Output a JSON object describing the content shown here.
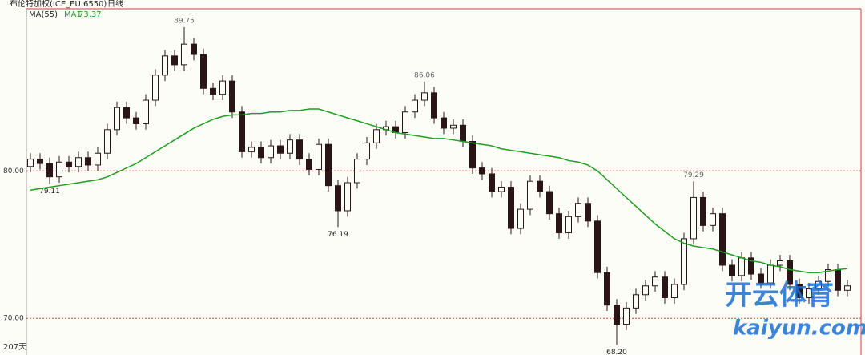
{
  "chart_data": {
    "type": "candlestick",
    "title": "布伦特加权(ICE_EU 6550)",
    "period": "日线",
    "indicator": "MA(55)",
    "footer": "207天",
    "ylim": [
      68,
      91
    ],
    "yticks": [
      {
        "value": 70,
        "label": "70.00"
      },
      {
        "value": 80,
        "label": "80.00"
      }
    ],
    "grid": true,
    "up_color": "#fdfdf7",
    "down_color": "#2a1616",
    "candles": {
      "open": [
        80.3,
        80.8,
        80.5,
        79.6,
        80.6,
        80.3,
        80.9,
        80.4,
        81.2,
        82.8,
        84.3,
        83.6,
        83.2,
        84.8,
        86.5,
        87.8,
        87.2,
        88.6,
        87.9,
        85.6,
        85.2,
        86.1,
        84.0,
        81.3,
        81.6,
        80.9,
        81.7,
        81.2,
        82.1,
        80.8,
        80.1,
        81.8,
        79.0,
        77.3,
        79.2,
        80.8,
        81.9,
        82.8,
        83.0,
        82.6,
        84.0,
        84.8,
        85.3,
        83.6,
        82.9,
        83.1,
        82.0,
        80.2,
        79.8,
        78.6,
        78.9,
        76.1,
        77.4,
        79.3,
        78.6,
        77.1,
        75.8,
        76.9,
        77.8,
        76.6,
        73.1,
        70.9,
        69.6,
        70.7,
        71.6,
        72.2,
        72.8,
        71.4,
        72.3,
        75.4,
        78.2,
        76.3,
        77.1,
        73.6,
        72.9,
        74.1,
        73.0,
        72.4,
        73.6,
        73.9,
        72.3,
        71.4,
        72.0,
        72.5,
        73.3,
        71.9
      ],
      "high": [
        81.2,
        81.2,
        80.9,
        81.0,
        81.0,
        81.3,
        81.3,
        81.6,
        83.2,
        84.7,
        84.7,
        84.0,
        85.2,
        86.9,
        88.2,
        88.2,
        89.75,
        89.0,
        88.3,
        86.0,
        86.5,
        86.5,
        84.4,
        82.0,
        82.0,
        82.1,
        82.1,
        82.5,
        82.5,
        81.2,
        82.2,
        82.2,
        79.4,
        79.6,
        81.2,
        82.3,
        83.2,
        83.4,
        83.4,
        84.4,
        85.2,
        86.06,
        85.7,
        84.0,
        83.5,
        83.5,
        82.4,
        80.6,
        80.2,
        79.3,
        79.3,
        77.8,
        79.7,
        79.7,
        79.0,
        77.5,
        77.3,
        78.2,
        78.2,
        77.0,
        73.5,
        71.3,
        71.1,
        72.0,
        72.6,
        73.2,
        73.2,
        72.7,
        75.8,
        79.29,
        78.6,
        77.5,
        77.5,
        74.0,
        74.5,
        74.5,
        73.4,
        74.0,
        74.3,
        74.3,
        72.7,
        72.4,
        72.9,
        73.7,
        73.7,
        72.6
      ],
      "low": [
        79.9,
        80.1,
        79.11,
        79.2,
        79.9,
        79.9,
        80.0,
        80.0,
        80.8,
        82.4,
        83.2,
        82.8,
        82.8,
        84.4,
        86.1,
        86.8,
        86.8,
        87.5,
        85.2,
        84.8,
        84.8,
        83.6,
        80.9,
        80.9,
        80.5,
        80.5,
        80.8,
        80.8,
        80.4,
        79.7,
        79.7,
        78.6,
        76.19,
        76.9,
        78.8,
        80.4,
        81.5,
        82.4,
        82.2,
        82.2,
        83.6,
        84.4,
        83.2,
        82.5,
        82.5,
        81.6,
        79.8,
        79.4,
        78.2,
        78.2,
        75.7,
        75.7,
        77.0,
        78.2,
        76.7,
        75.4,
        75.4,
        76.5,
        76.2,
        72.7,
        70.5,
        68.2,
        69.2,
        70.3,
        71.2,
        71.8,
        71.0,
        71.0,
        71.9,
        75.0,
        75.9,
        75.9,
        73.2,
        72.5,
        72.5,
        72.6,
        72.0,
        72.0,
        73.2,
        71.9,
        71.0,
        71.0,
        71.6,
        72.1,
        71.5,
        71.5
      ],
      "close": [
        80.8,
        80.5,
        79.6,
        80.6,
        80.3,
        80.9,
        80.4,
        81.2,
        82.8,
        84.3,
        83.6,
        83.2,
        84.8,
        86.5,
        87.8,
        87.2,
        88.6,
        87.9,
        85.6,
        85.2,
        86.1,
        84.0,
        81.3,
        81.6,
        80.9,
        81.7,
        81.2,
        82.1,
        80.8,
        80.1,
        81.8,
        79.0,
        77.3,
        79.2,
        80.8,
        81.9,
        82.8,
        83.0,
        82.6,
        84.0,
        84.8,
        85.3,
        83.6,
        82.9,
        83.1,
        82.0,
        80.2,
        79.8,
        78.6,
        78.9,
        76.1,
        77.4,
        79.3,
        78.6,
        77.1,
        75.8,
        76.9,
        77.8,
        76.6,
        73.1,
        70.9,
        69.6,
        70.7,
        71.6,
        72.2,
        72.8,
        71.4,
        72.3,
        75.4,
        78.2,
        76.3,
        77.1,
        73.6,
        72.9,
        74.1,
        73.0,
        72.4,
        73.6,
        73.9,
        72.3,
        71.4,
        72.0,
        72.5,
        73.3,
        71.9,
        72.2
      ],
      "high_labels": [
        null,
        null,
        null,
        null,
        null,
        null,
        null,
        null,
        null,
        null,
        null,
        null,
        null,
        null,
        null,
        null,
        "89.75",
        null,
        null,
        null,
        null,
        null,
        null,
        null,
        null,
        null,
        null,
        null,
        null,
        null,
        null,
        null,
        null,
        null,
        null,
        null,
        null,
        null,
        null,
        null,
        null,
        "86.06",
        null,
        null,
        null,
        null,
        null,
        null,
        null,
        null,
        null,
        null,
        null,
        null,
        null,
        null,
        null,
        null,
        null,
        null,
        null,
        null,
        null,
        null,
        null,
        null,
        null,
        null,
        null,
        "79.29",
        null,
        null,
        null,
        null,
        null,
        null,
        null,
        null,
        null,
        null,
        null,
        null,
        null,
        null,
        null,
        null
      ],
      "low_labels": [
        null,
        null,
        "79.11",
        null,
        null,
        null,
        null,
        null,
        null,
        null,
        null,
        null,
        null,
        null,
        null,
        null,
        null,
        null,
        null,
        null,
        null,
        null,
        null,
        null,
        null,
        null,
        null,
        null,
        null,
        null,
        null,
        null,
        "76.19",
        null,
        null,
        null,
        null,
        null,
        null,
        null,
        null,
        null,
        null,
        null,
        null,
        null,
        null,
        null,
        null,
        null,
        null,
        null,
        null,
        null,
        null,
        null,
        null,
        null,
        null,
        null,
        null,
        "68.20",
        null,
        null,
        null,
        null,
        null,
        null,
        null,
        null,
        null,
        null,
        null,
        null,
        null,
        null,
        null,
        null,
        null,
        null,
        null,
        null,
        null,
        null,
        null,
        null
      ]
    },
    "series": [
      {
        "name": "MA1",
        "color": "#1f9e1f",
        "values": [
          78.7,
          78.8,
          78.9,
          79.0,
          79.1,
          79.2,
          79.3,
          79.4,
          79.6,
          79.9,
          80.2,
          80.5,
          80.9,
          81.3,
          81.7,
          82.1,
          82.5,
          82.9,
          83.2,
          83.5,
          83.7,
          83.8,
          83.8,
          83.9,
          83.9,
          84.0,
          84.0,
          84.1,
          84.1,
          84.2,
          84.2,
          84.0,
          83.8,
          83.6,
          83.4,
          83.2,
          83.0,
          82.8,
          82.6,
          82.5,
          82.4,
          82.3,
          82.2,
          82.2,
          82.1,
          82.0,
          81.9,
          81.8,
          81.7,
          81.5,
          81.4,
          81.3,
          81.2,
          81.1,
          81.0,
          80.9,
          80.7,
          80.6,
          80.4,
          80.0,
          79.4,
          78.8,
          78.2,
          77.6,
          77.0,
          76.4,
          75.9,
          75.4,
          75.1,
          74.9,
          74.8,
          74.7,
          74.5,
          74.3,
          74.1,
          73.9,
          73.8,
          73.6,
          73.5,
          73.3,
          73.2,
          73.1,
          73.1,
          73.2,
          73.3,
          73.37
        ]
      }
    ],
    "watermark": {
      "brand": "开云体育",
      "url": "kaiyun.com"
    }
  }
}
